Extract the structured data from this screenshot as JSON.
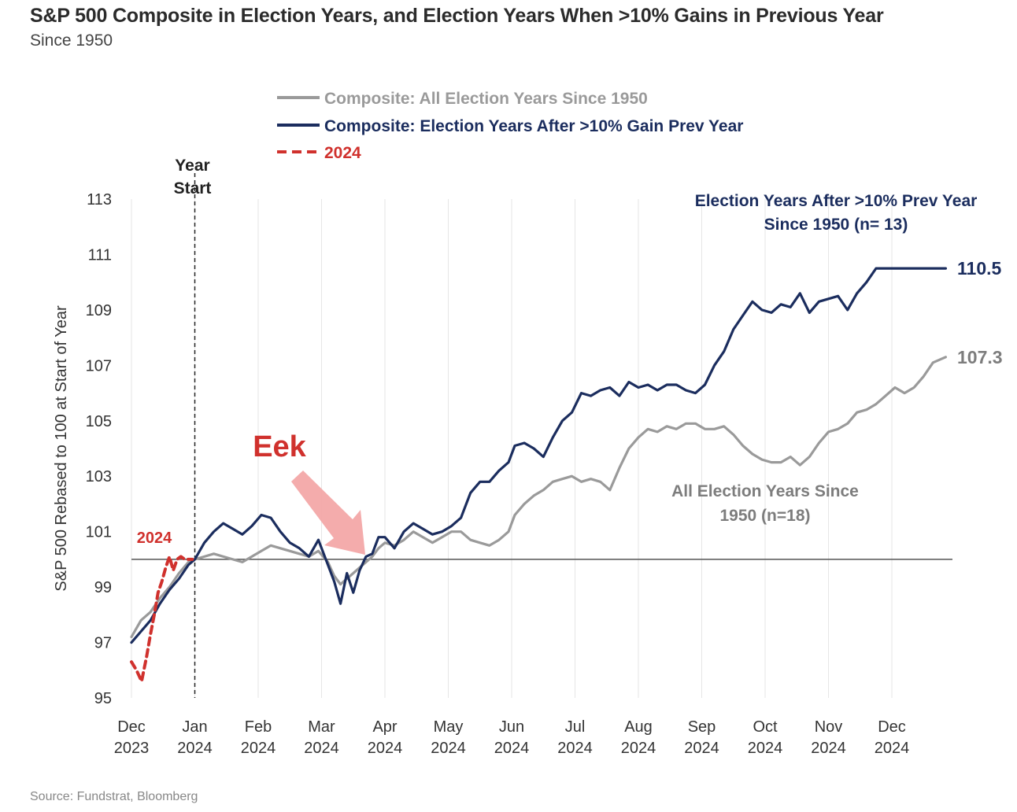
{
  "title": "S&P 500 Composite in Election Years, and Election Years When >10% Gains in Previous Year",
  "subtitle": "Since 1950",
  "source": "Source: Fundstrat, Bloomberg",
  "chart_data": {
    "type": "line",
    "ylabel": "S&P 500 Rebased to 100 at Start of Year",
    "ylim": [
      95,
      113
    ],
    "yticks": [
      "95",
      "97",
      "99",
      "101",
      "103",
      "105",
      "107",
      "109",
      "111",
      "113"
    ],
    "xticks": [
      {
        "month": "Dec",
        "year": "2023"
      },
      {
        "month": "Jan",
        "year": "2024"
      },
      {
        "month": "Feb",
        "year": "2024"
      },
      {
        "month": "Mar",
        "year": "2024"
      },
      {
        "month": "Apr",
        "year": "2024"
      },
      {
        "month": "May",
        "year": "2024"
      },
      {
        "month": "Jun",
        "year": "2024"
      },
      {
        "month": "Jul",
        "year": "2024"
      },
      {
        "month": "Aug",
        "year": "2024"
      },
      {
        "month": "Sep",
        "year": "2024"
      },
      {
        "month": "Oct",
        "year": "2024"
      },
      {
        "month": "Nov",
        "year": "2024"
      },
      {
        "month": "Dec",
        "year": "2024"
      }
    ],
    "legend": [
      {
        "label": "Composite: All Election Years Since 1950",
        "color": "#9a9a9a",
        "style": "solid"
      },
      {
        "label": "Composite: Election Years After >10% Gain Prev Year",
        "color": "#1b2d5e",
        "style": "solid"
      },
      {
        "label": "2024",
        "color": "#d0312d",
        "style": "dashed"
      }
    ],
    "baseline": 100,
    "year_start_label": [
      "Year",
      "Start"
    ],
    "series": [
      {
        "name": "Composite: Election Years After >10% Gain Prev Year",
        "color": "#1b2d5e",
        "x": [
          0,
          0.15,
          0.3,
          0.45,
          0.6,
          0.75,
          0.9,
          1.0,
          1.15,
          1.3,
          1.45,
          1.6,
          1.75,
          1.9,
          2.05,
          2.2,
          2.35,
          2.5,
          2.65,
          2.8,
          2.95,
          3.1,
          3.2,
          3.3,
          3.4,
          3.5,
          3.6,
          3.7,
          3.8,
          3.9,
          4.0,
          4.15,
          4.3,
          4.45,
          4.6,
          4.75,
          4.9,
          5.05,
          5.2,
          5.35,
          5.5,
          5.65,
          5.8,
          5.95,
          6.05,
          6.2,
          6.35,
          6.5,
          6.65,
          6.8,
          6.95,
          7.1,
          7.25,
          7.4,
          7.55,
          7.7,
          7.85,
          8.0,
          8.15,
          8.3,
          8.45,
          8.6,
          8.75,
          8.9,
          9.05,
          9.2,
          9.35,
          9.5,
          9.65,
          9.8,
          9.95,
          10.1,
          10.25,
          10.4,
          10.55,
          10.7,
          10.85,
          11.0,
          11.15,
          11.3,
          11.45,
          11.6,
          11.75,
          11.9,
          12.05,
          12.2,
          12.35,
          12.5,
          12.65,
          12.85
        ],
        "values": [
          97.0,
          97.4,
          97.8,
          98.4,
          98.9,
          99.3,
          99.8,
          100.0,
          100.6,
          101.0,
          101.3,
          101.1,
          100.9,
          101.2,
          101.6,
          101.5,
          101.0,
          100.6,
          100.4,
          100.1,
          100.7,
          99.8,
          99.2,
          98.4,
          99.5,
          98.8,
          99.6,
          100.1,
          100.2,
          100.8,
          100.8,
          100.4,
          101.0,
          101.3,
          101.1,
          100.9,
          101.0,
          101.2,
          101.5,
          102.4,
          102.8,
          102.8,
          103.2,
          103.5,
          104.1,
          104.2,
          104.0,
          103.7,
          104.4,
          105.0,
          105.3,
          106.0,
          105.9,
          106.1,
          106.2,
          105.9,
          106.4,
          106.2,
          106.3,
          106.1,
          106.3,
          106.3,
          106.1,
          106.0,
          106.3,
          107.0,
          107.5,
          108.3,
          108.8,
          109.3,
          109.0,
          108.9,
          109.2,
          109.1,
          109.6,
          108.9,
          109.3,
          109.4,
          109.5,
          109.0,
          109.6,
          110.0,
          110.5,
          110.5,
          110.5,
          110.5,
          110.5,
          110.5,
          110.5,
          110.5
        ],
        "end_value_label": "110.5",
        "annotation": [
          "Election Years After >10% Prev Year",
          "Since 1950 (n= 13)"
        ]
      },
      {
        "name": "Composite: All Election Years Since 1950",
        "color": "#9a9a9a",
        "x": [
          0,
          0.15,
          0.3,
          0.45,
          0.6,
          0.75,
          0.9,
          1.0,
          1.15,
          1.3,
          1.45,
          1.6,
          1.75,
          1.9,
          2.05,
          2.2,
          2.35,
          2.5,
          2.65,
          2.8,
          2.95,
          3.1,
          3.2,
          3.3,
          3.4,
          3.5,
          3.6,
          3.7,
          3.8,
          3.9,
          4.0,
          4.15,
          4.3,
          4.45,
          4.6,
          4.75,
          4.9,
          5.05,
          5.2,
          5.35,
          5.5,
          5.65,
          5.8,
          5.95,
          6.05,
          6.2,
          6.35,
          6.5,
          6.65,
          6.8,
          6.95,
          7.1,
          7.25,
          7.4,
          7.55,
          7.7,
          7.85,
          8.0,
          8.15,
          8.3,
          8.45,
          8.6,
          8.75,
          8.9,
          9.05,
          9.2,
          9.35,
          9.5,
          9.65,
          9.8,
          9.95,
          10.1,
          10.25,
          10.4,
          10.55,
          10.7,
          10.85,
          11.0,
          11.15,
          11.3,
          11.45,
          11.6,
          11.75,
          11.9,
          12.05,
          12.2,
          12.35,
          12.5,
          12.65,
          12.85
        ],
        "values": [
          97.2,
          97.8,
          98.1,
          98.6,
          99.0,
          99.5,
          99.9,
          100.0,
          100.1,
          100.2,
          100.1,
          100.0,
          99.9,
          100.1,
          100.3,
          100.5,
          100.4,
          100.3,
          100.2,
          100.1,
          100.3,
          99.9,
          99.4,
          99.1,
          99.3,
          99.5,
          99.7,
          99.9,
          100.1,
          100.4,
          100.6,
          100.5,
          100.7,
          101.0,
          100.8,
          100.6,
          100.8,
          101.0,
          101.0,
          100.7,
          100.6,
          100.5,
          100.7,
          101.0,
          101.6,
          102.0,
          102.3,
          102.5,
          102.8,
          102.9,
          103.0,
          102.8,
          102.9,
          102.8,
          102.5,
          103.3,
          104.0,
          104.4,
          104.7,
          104.6,
          104.8,
          104.7,
          104.9,
          104.9,
          104.7,
          104.7,
          104.8,
          104.5,
          104.1,
          103.8,
          103.6,
          103.5,
          103.5,
          103.7,
          103.4,
          103.7,
          104.2,
          104.6,
          104.7,
          104.9,
          105.3,
          105.4,
          105.6,
          105.9,
          106.2,
          106.0,
          106.2,
          106.6,
          107.1,
          107.3
        ],
        "end_value_label": "107.3",
        "annotation": [
          "All Election Years Since",
          "1950 (n=18)"
        ]
      },
      {
        "name": "2024",
        "color": "#d0312d",
        "x": [
          0.0,
          0.08,
          0.16,
          0.24,
          0.3,
          0.36,
          0.42,
          0.48,
          0.54,
          0.6,
          0.66,
          0.72,
          0.78,
          0.84,
          0.9,
          0.96
        ],
        "values": [
          96.3,
          96.0,
          95.6,
          96.5,
          97.3,
          98.0,
          98.8,
          99.2,
          99.7,
          100.1,
          99.6,
          100.0,
          100.1,
          100.0,
          100.0,
          100.0
        ],
        "inline_label": "2024"
      }
    ],
    "callout": {
      "text": "Eek"
    }
  }
}
